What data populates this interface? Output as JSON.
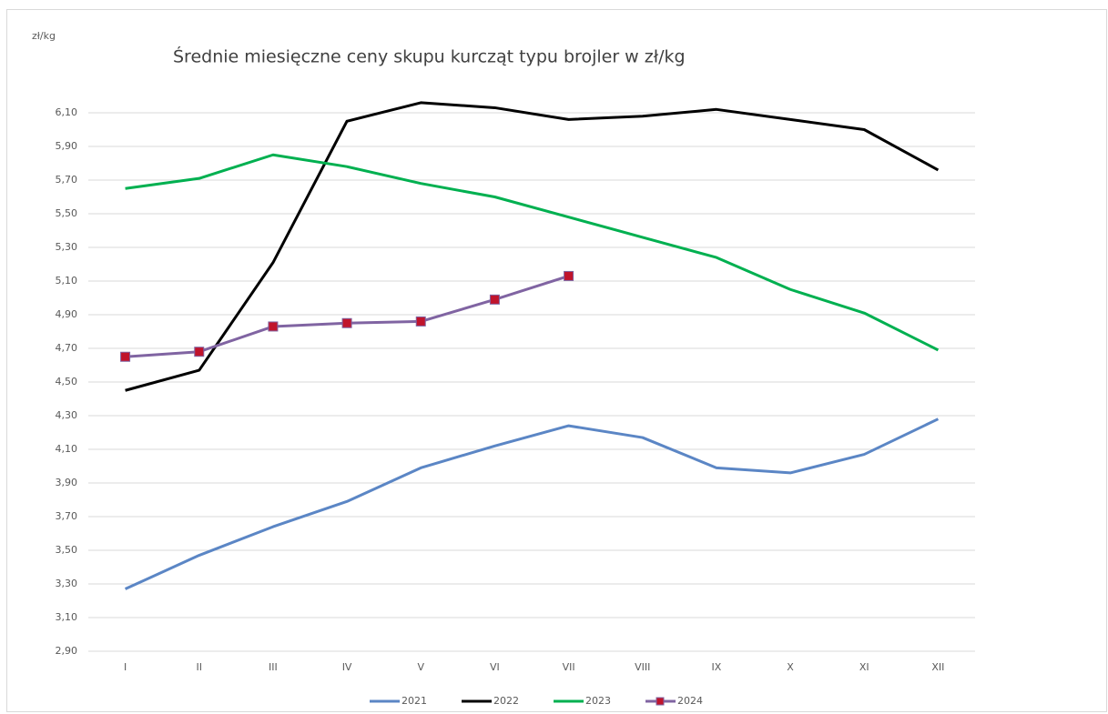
{
  "chart_data": {
    "type": "line",
    "title": "Średnie miesięczne ceny skupu kurcząt typu brojler w zł/kg",
    "y_label": "zł/kg",
    "categories": [
      "I",
      "II",
      "III",
      "IV",
      "V",
      "VI",
      "VII",
      "VIII",
      "IX",
      "X",
      "XI",
      "XII"
    ],
    "series": [
      {
        "name": "2021",
        "color": "#5b86c5",
        "values": [
          3.27,
          3.47,
          3.64,
          3.79,
          3.99,
          4.12,
          4.24,
          4.17,
          3.99,
          3.96,
          4.07,
          4.28
        ]
      },
      {
        "name": "2022",
        "color": "#000000",
        "values": [
          4.45,
          4.57,
          5.21,
          6.05,
          6.16,
          6.13,
          6.06,
          6.08,
          6.12,
          6.06,
          6.0,
          5.76
        ]
      },
      {
        "name": "2023",
        "color": "#00b050",
        "values": [
          5.65,
          5.71,
          5.85,
          5.78,
          5.68,
          5.6,
          5.48,
          5.36,
          5.24,
          5.05,
          4.91,
          4.69
        ]
      },
      {
        "name": "2024",
        "color": "#8064a2",
        "marker": "square",
        "marker_color": "#c0142c",
        "values": [
          4.65,
          4.68,
          4.83,
          4.85,
          4.86,
          4.99,
          5.13,
          null,
          null,
          null,
          null,
          null
        ]
      }
    ],
    "ylim": [
      2.9,
      6.1
    ],
    "yticks": [
      {
        "value": 2.9,
        "label": "2,90"
      },
      {
        "value": 3.1,
        "label": "3,10"
      },
      {
        "value": 3.3,
        "label": "3,30"
      },
      {
        "value": 3.5,
        "label": "3,50"
      },
      {
        "value": 3.7,
        "label": "3,70"
      },
      {
        "value": 3.9,
        "label": "3,90"
      },
      {
        "value": 4.1,
        "label": "4,10"
      },
      {
        "value": 4.3,
        "label": "4,30"
      },
      {
        "value": 4.5,
        "label": "4,50"
      },
      {
        "value": 4.7,
        "label": "4,70"
      },
      {
        "value": 4.9,
        "label": "4,90"
      },
      {
        "value": 5.1,
        "label": "5,10"
      },
      {
        "value": 5.3,
        "label": "5,30"
      },
      {
        "value": 5.5,
        "label": "5,50"
      },
      {
        "value": 5.7,
        "label": "5,70"
      },
      {
        "value": 5.9,
        "label": "5,90"
      },
      {
        "value": 6.1,
        "label": "6,10"
      }
    ],
    "grid": true,
    "legend": "bottom"
  }
}
